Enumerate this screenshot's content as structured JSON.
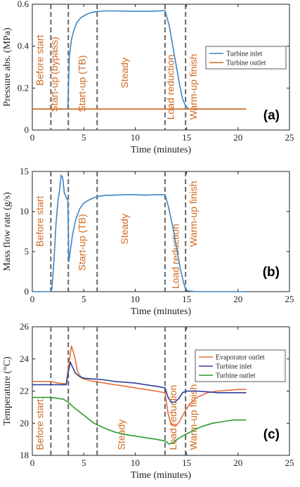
{
  "colors": {
    "turbine_inlet_a": "#3b86c6",
    "turbine_outlet_a": "#d2691e",
    "evaporator_outlet": "#e2703a",
    "turbine_inlet_c": "#2e3f9a",
    "turbine_outlet_c": "#2e9a2e",
    "phase_text": "#d2691e",
    "phase_line": "#666666"
  },
  "chart_data": [
    {
      "type": "line",
      "panel_label": "(a)",
      "xlabel": "Time (minutes)",
      "ylabel": "Pressure abs. (MPa)",
      "xlim": [
        0,
        25
      ],
      "ylim": [
        0,
        0.6
      ],
      "xticks": [
        "0",
        "5",
        "10",
        "15",
        "20",
        "25"
      ],
      "yticks": [
        "0",
        "0.2",
        "0.4",
        "0.6"
      ],
      "phase_lines": [
        1.8,
        3.5,
        6.3,
        12.9,
        14.9
      ],
      "phases": [
        "Before start",
        "Start-up (bypass)",
        "Start-up (TB)",
        "Steady",
        "Load reduction",
        "Warm-up finish"
      ],
      "legend_position": "right",
      "series": [
        {
          "name": "Turbine inlet",
          "color": "#3b86c6",
          "x": [
            0,
            3.45,
            3.6,
            3.8,
            4.0,
            4.3,
            4.7,
            5.2,
            5.7,
            6.3,
            7,
            8,
            9,
            10,
            11,
            12,
            12.9,
            13.3,
            13.8,
            14.3,
            14.6,
            14.9,
            15.2,
            16,
            18,
            20.8
          ],
          "y": [
            0.1,
            0.1,
            0.35,
            0.43,
            0.47,
            0.51,
            0.535,
            0.55,
            0.56,
            0.565,
            0.568,
            0.568,
            0.567,
            0.566,
            0.566,
            0.567,
            0.57,
            0.5,
            0.36,
            0.22,
            0.15,
            0.115,
            0.1,
            0.1,
            0.1,
            0.1
          ]
        },
        {
          "name": "Turbine outlet",
          "color": "#d2691e",
          "x": [
            0,
            5,
            10,
            15,
            20.8
          ],
          "y": [
            0.1,
            0.1,
            0.1,
            0.1,
            0.1
          ]
        }
      ]
    },
    {
      "type": "line",
      "panel_label": "(b)",
      "xlabel": "Time (minutes)",
      "ylabel": "Mass flow rate (g/s)",
      "xlim": [
        0,
        25
      ],
      "ylim": [
        0,
        16
      ],
      "xticks": [
        "0",
        "5",
        "10",
        "15",
        "20",
        "25"
      ],
      "yticks": [
        "0",
        "5",
        "10",
        "15"
      ],
      "phase_lines": [
        1.8,
        3.5,
        6.3,
        12.9,
        14.9
      ],
      "phases": [
        "Before start",
        "Start-up (TB)",
        "Steady",
        "Load reduction",
        "Warm-up finish"
      ],
      "series": [
        {
          "color": "#3b86c6",
          "x": [
            0,
            1.7,
            1.9,
            2.1,
            2.3,
            2.5,
            2.65,
            2.8,
            2.95,
            3.1,
            3.3,
            3.45,
            3.55,
            3.7,
            3.9,
            4.2,
            4.6,
            5.0,
            5.5,
            6.0,
            6.5,
            7,
            8,
            9,
            10,
            11,
            12,
            12.9,
            13.2,
            13.6,
            14.0,
            14.4,
            14.7,
            14.9,
            15.1,
            16,
            18,
            20.8
          ],
          "y": [
            0,
            0,
            0.3,
            4,
            9,
            12.2,
            13.5,
            15.5,
            15.2,
            13.2,
            12.5,
            12.2,
            4,
            5.5,
            7.5,
            9.5,
            11,
            11.8,
            12.2,
            12.5,
            12.7,
            12.8,
            12.85,
            12.9,
            12.9,
            12.85,
            12.9,
            12.9,
            11.5,
            9,
            6,
            3,
            1.2,
            0.4,
            0.1,
            0,
            0,
            0
          ]
        }
      ]
    },
    {
      "type": "line",
      "panel_label": "(c)",
      "xlabel": "Time (minutes)",
      "ylabel": "Temperature (°C)",
      "xlim": [
        0,
        25
      ],
      "ylim": [
        18,
        26
      ],
      "xticks": [
        "0",
        "5",
        "10",
        "15",
        "20",
        "25"
      ],
      "yticks": [
        "18",
        "20",
        "22",
        "24",
        "26"
      ],
      "phase_lines": [
        1.8,
        3.5,
        6.3,
        12.9,
        14.9
      ],
      "phases": [
        "Before start",
        "Steady",
        "Load reduction",
        "Warm-up finish"
      ],
      "legend_position": "top-right",
      "series": [
        {
          "name": "Evaporator outlet",
          "color": "#e2703a",
          "x": [
            0,
            1.8,
            2.5,
            3.3,
            3.5,
            3.8,
            4.1,
            4.4,
            4.8,
            5.3,
            6,
            7,
            8,
            9,
            10,
            11,
            12,
            12.9,
            13.2,
            13.5,
            13.9,
            14.3,
            14.8,
            15.3,
            16,
            17,
            18,
            19,
            20,
            20.8
          ],
          "y": [
            22.6,
            22.6,
            22.5,
            22.45,
            23.4,
            24.8,
            24.2,
            23.2,
            22.8,
            22.7,
            22.6,
            22.5,
            22.4,
            22.3,
            22.2,
            22.1,
            22.0,
            21.9,
            20.6,
            19.9,
            19.8,
            20.1,
            20.7,
            21.2,
            21.6,
            21.9,
            22.0,
            22.05,
            22.1,
            22.1
          ]
        },
        {
          "name": "Turbine inlet",
          "color": "#2e3f9a",
          "x": [
            0,
            1.8,
            2.5,
            3.3,
            3.5,
            3.7,
            3.9,
            4.2,
            4.6,
            5,
            6,
            7,
            8,
            9,
            10,
            11,
            12,
            12.9,
            13.2,
            13.5,
            13.8,
            14.2,
            14.6,
            15,
            16,
            17,
            18,
            19,
            20,
            20.8
          ],
          "y": [
            22.4,
            22.4,
            22.4,
            22.4,
            23.2,
            23.8,
            23.5,
            23.1,
            22.9,
            22.8,
            22.75,
            22.7,
            22.6,
            22.55,
            22.5,
            22.4,
            22.3,
            22.2,
            21.6,
            21.3,
            21.3,
            21.5,
            21.9,
            22.0,
            22.0,
            21.95,
            21.9,
            21.9,
            21.9,
            21.9
          ]
        },
        {
          "name": "Turbine outlet",
          "color": "#2e9a2e",
          "x": [
            0,
            1.8,
            3.0,
            3.5,
            4.0,
            5.0,
            6.0,
            7.0,
            8.0,
            9.0,
            10.0,
            11.0,
            12.0,
            12.9,
            13.3,
            13.7,
            14.1,
            14.6,
            15.2,
            15.8,
            16.5,
            17.5,
            18.5,
            19.5,
            20.8
          ],
          "y": [
            21.6,
            21.6,
            21.5,
            21.3,
            21.0,
            20.5,
            20.0,
            19.7,
            19.45,
            19.3,
            19.2,
            19.1,
            19.0,
            18.9,
            18.7,
            18.8,
            19.0,
            19.2,
            19.4,
            19.6,
            19.8,
            20.0,
            20.1,
            20.2,
            20.2
          ]
        }
      ]
    }
  ]
}
